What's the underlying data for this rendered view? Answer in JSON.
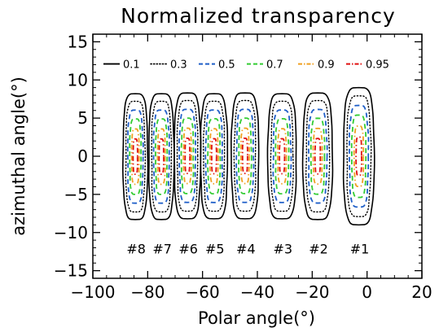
{
  "chart_data": {
    "type": "contour",
    "title": "Normalized transparency",
    "xlabel": "Polar angle(°)",
    "ylabel": "azimuthal angle(°)",
    "xlim": [
      -100,
      20
    ],
    "ylim": [
      -16,
      16
    ],
    "xticks": [
      -100,
      -80,
      -60,
      -40,
      -20,
      0,
      20
    ],
    "yticks": [
      -15,
      -10,
      -5,
      0,
      5,
      10,
      15
    ],
    "xtick_labels": [
      "−100",
      "−80",
      "−60",
      "−40",
      "−20",
      "0",
      "20"
    ],
    "ytick_labels": [
      "−15",
      "−10",
      "−5",
      "0",
      "5",
      "10",
      "15"
    ],
    "grid": false,
    "legend_position": "top",
    "levels": [
      {
        "label": "0.1",
        "value": 0.1,
        "color": "#000000",
        "style": "solid"
      },
      {
        "label": "0.3",
        "value": 0.3,
        "color": "#000000",
        "style": "dotted"
      },
      {
        "label": "0.5",
        "value": 0.5,
        "color": "#1f5fc8",
        "style": "dashed"
      },
      {
        "label": "0.7",
        "value": 0.7,
        "color": "#33cc33",
        "style": "dashed"
      },
      {
        "label": "0.9",
        "value": 0.9,
        "color": "#f0a020",
        "style": "dashdot"
      },
      {
        "label": "0.95",
        "value": 0.95,
        "color": "#e01010",
        "style": "dashdot"
      }
    ],
    "clusters": [
      {
        "label": "#8",
        "center_x": -84.5,
        "halfwidth_x": 4.5,
        "y_range": [
          -8.3,
          8.2
        ]
      },
      {
        "label": "#7",
        "center_x": -75.0,
        "halfwidth_x": 4.6,
        "y_range": [
          -8.3,
          8.2
        ]
      },
      {
        "label": "#6",
        "center_x": -65.5,
        "halfwidth_x": 4.8,
        "y_range": [
          -8.2,
          8.3
        ]
      },
      {
        "label": "#5",
        "center_x": -55.8,
        "halfwidth_x": 4.9,
        "y_range": [
          -8.2,
          8.2
        ]
      },
      {
        "label": "#4",
        "center_x": -44.5,
        "halfwidth_x": 5.0,
        "y_range": [
          -8.2,
          8.3
        ]
      },
      {
        "label": "#3",
        "center_x": -31.0,
        "halfwidth_x": 5.2,
        "y_range": [
          -8.2,
          8.2
        ]
      },
      {
        "label": "#2",
        "center_x": -18.0,
        "halfwidth_x": 5.4,
        "y_range": [
          -8.3,
          8.3
        ]
      },
      {
        "label": "#1",
        "center_x": -3.0,
        "halfwidth_x": 5.6,
        "y_range": [
          -9.0,
          9.0
        ]
      }
    ]
  }
}
